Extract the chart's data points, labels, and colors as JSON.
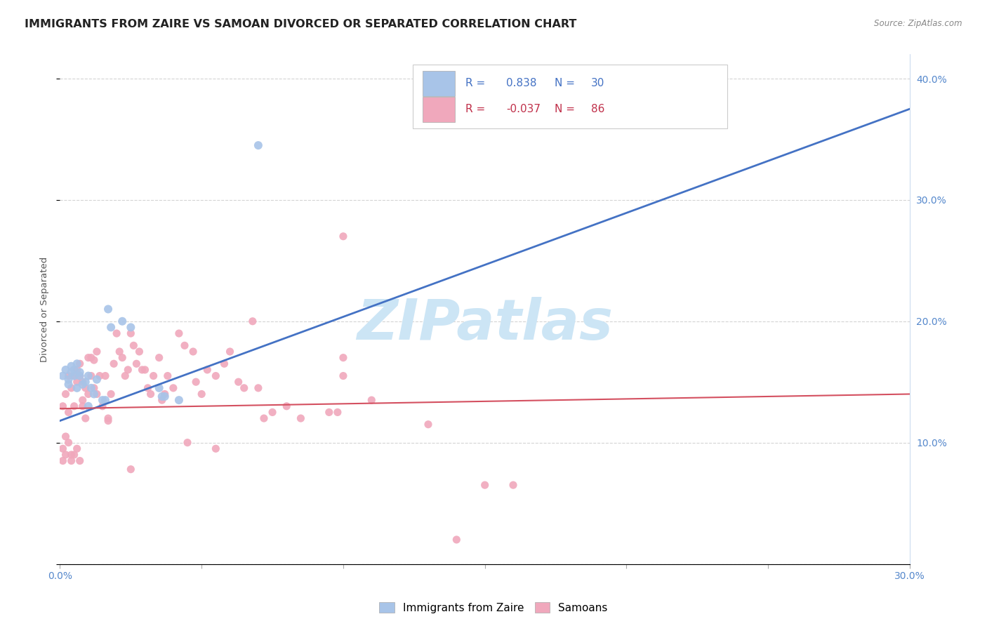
{
  "title": "IMMIGRANTS FROM ZAIRE VS SAMOAN DIVORCED OR SEPARATED CORRELATION CHART",
  "source": "Source: ZipAtlas.com",
  "ylabel": "Divorced or Separated",
  "x_min": 0.0,
  "x_max": 0.3,
  "y_min": 0.0,
  "y_max": 0.42,
  "x_ticks": [
    0.0,
    0.05,
    0.1,
    0.15,
    0.2,
    0.25,
    0.3
  ],
  "x_tick_labels_show": [
    "0.0%",
    "",
    "",
    "",
    "",
    "",
    "30.0%"
  ],
  "y_ticks": [
    0.0,
    0.1,
    0.2,
    0.3,
    0.4
  ],
  "y_tick_labels_right": [
    "",
    "10.0%",
    "20.0%",
    "30.0%",
    "40.0%"
  ],
  "legend_labels": [
    "Immigrants from Zaire",
    "Samoans"
  ],
  "blue_color": "#a8c4e8",
  "pink_color": "#f0a8bc",
  "blue_line_color": "#4472c4",
  "pink_line_color": "#d45060",
  "blue_r_color": "#4472c4",
  "pink_r_color": "#c0304a",
  "watermark": "ZIPatlas",
  "watermark_color": "#cce5f5",
  "blue_scatter": [
    [
      0.001,
      0.155
    ],
    [
      0.002,
      0.16
    ],
    [
      0.003,
      0.148
    ],
    [
      0.003,
      0.152
    ],
    [
      0.004,
      0.158
    ],
    [
      0.004,
      0.163
    ],
    [
      0.005,
      0.155
    ],
    [
      0.005,
      0.16
    ],
    [
      0.006,
      0.165
    ],
    [
      0.006,
      0.145
    ],
    [
      0.007,
      0.155
    ],
    [
      0.007,
      0.158
    ],
    [
      0.008,
      0.148
    ],
    [
      0.009,
      0.15
    ],
    [
      0.01,
      0.155
    ],
    [
      0.01,
      0.13
    ],
    [
      0.011,
      0.145
    ],
    [
      0.012,
      0.14
    ],
    [
      0.013,
      0.152
    ],
    [
      0.015,
      0.135
    ],
    [
      0.016,
      0.135
    ],
    [
      0.017,
      0.21
    ],
    [
      0.018,
      0.195
    ],
    [
      0.022,
      0.2
    ],
    [
      0.025,
      0.195
    ],
    [
      0.035,
      0.145
    ],
    [
      0.036,
      0.138
    ],
    [
      0.037,
      0.138
    ],
    [
      0.042,
      0.135
    ],
    [
      0.07,
      0.345
    ]
  ],
  "pink_scatter": [
    [
      0.001,
      0.13
    ],
    [
      0.001,
      0.095
    ],
    [
      0.001,
      0.085
    ],
    [
      0.002,
      0.14
    ],
    [
      0.002,
      0.105
    ],
    [
      0.002,
      0.09
    ],
    [
      0.003,
      0.125
    ],
    [
      0.003,
      0.1
    ],
    [
      0.003,
      0.155
    ],
    [
      0.004,
      0.145
    ],
    [
      0.004,
      0.09
    ],
    [
      0.004,
      0.085
    ],
    [
      0.005,
      0.155
    ],
    [
      0.005,
      0.09
    ],
    [
      0.005,
      0.13
    ],
    [
      0.006,
      0.16
    ],
    [
      0.006,
      0.15
    ],
    [
      0.006,
      0.095
    ],
    [
      0.007,
      0.155
    ],
    [
      0.007,
      0.165
    ],
    [
      0.007,
      0.085
    ],
    [
      0.008,
      0.15
    ],
    [
      0.008,
      0.135
    ],
    [
      0.008,
      0.13
    ],
    [
      0.009,
      0.145
    ],
    [
      0.009,
      0.12
    ],
    [
      0.01,
      0.17
    ],
    [
      0.01,
      0.14
    ],
    [
      0.011,
      0.17
    ],
    [
      0.011,
      0.155
    ],
    [
      0.012,
      0.168
    ],
    [
      0.012,
      0.145
    ],
    [
      0.013,
      0.175
    ],
    [
      0.013,
      0.14
    ],
    [
      0.014,
      0.155
    ],
    [
      0.015,
      0.13
    ],
    [
      0.016,
      0.155
    ],
    [
      0.017,
      0.118
    ],
    [
      0.017,
      0.12
    ],
    [
      0.018,
      0.14
    ],
    [
      0.019,
      0.165
    ],
    [
      0.02,
      0.19
    ],
    [
      0.021,
      0.175
    ],
    [
      0.022,
      0.17
    ],
    [
      0.023,
      0.155
    ],
    [
      0.024,
      0.16
    ],
    [
      0.025,
      0.19
    ],
    [
      0.026,
      0.18
    ],
    [
      0.027,
      0.165
    ],
    [
      0.028,
      0.175
    ],
    [
      0.029,
      0.16
    ],
    [
      0.03,
      0.16
    ],
    [
      0.031,
      0.145
    ],
    [
      0.032,
      0.14
    ],
    [
      0.033,
      0.155
    ],
    [
      0.035,
      0.17
    ],
    [
      0.036,
      0.135
    ],
    [
      0.037,
      0.14
    ],
    [
      0.038,
      0.155
    ],
    [
      0.04,
      0.145
    ],
    [
      0.042,
      0.19
    ],
    [
      0.044,
      0.18
    ],
    [
      0.047,
      0.175
    ],
    [
      0.048,
      0.15
    ],
    [
      0.05,
      0.14
    ],
    [
      0.052,
      0.16
    ],
    [
      0.055,
      0.155
    ],
    [
      0.058,
      0.165
    ],
    [
      0.06,
      0.175
    ],
    [
      0.063,
      0.15
    ],
    [
      0.065,
      0.145
    ],
    [
      0.068,
      0.2
    ],
    [
      0.07,
      0.145
    ],
    [
      0.072,
      0.12
    ],
    [
      0.075,
      0.125
    ],
    [
      0.095,
      0.125
    ],
    [
      0.098,
      0.125
    ],
    [
      0.1,
      0.27
    ],
    [
      0.1,
      0.155
    ],
    [
      0.13,
      0.115
    ],
    [
      0.025,
      0.078
    ],
    [
      0.14,
      0.02
    ],
    [
      0.15,
      0.065
    ],
    [
      0.16,
      0.065
    ],
    [
      0.1,
      0.17
    ],
    [
      0.11,
      0.135
    ],
    [
      0.08,
      0.13
    ],
    [
      0.085,
      0.12
    ],
    [
      0.045,
      0.1
    ],
    [
      0.055,
      0.095
    ]
  ],
  "blue_line": [
    [
      0.0,
      0.118
    ],
    [
      0.3,
      0.375
    ]
  ],
  "pink_line": [
    [
      0.0,
      0.128
    ],
    [
      0.3,
      0.14
    ]
  ],
  "background_color": "#ffffff",
  "grid_color": "#d0d0d0",
  "title_fontsize": 11.5,
  "axis_fontsize": 10,
  "legend_fontsize": 11
}
